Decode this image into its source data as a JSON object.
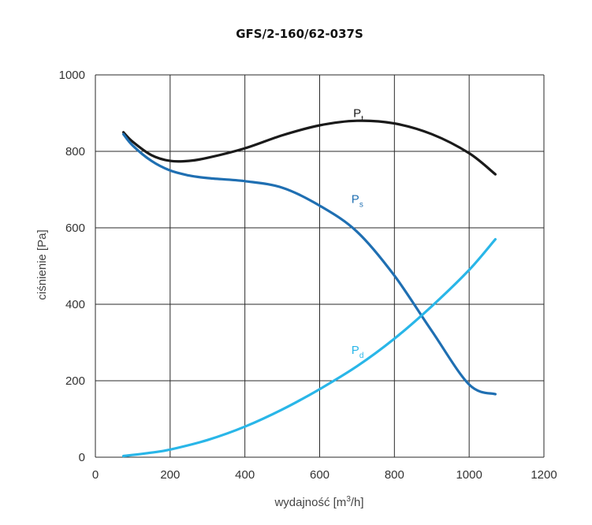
{
  "chart_data": {
    "type": "line",
    "title": "GFS/2-160/62-037S",
    "xlabel_prefix": "wydajność [m",
    "xlabel_sup": "3",
    "xlabel_suffix": "/h]",
    "ylabel": "ciśnienie [Pa]",
    "xlim": [
      0,
      1200
    ],
    "ylim": [
      0,
      1000
    ],
    "xticks": [
      0,
      200,
      400,
      600,
      800,
      1000,
      1200
    ],
    "yticks": [
      0,
      200,
      400,
      600,
      800,
      1000
    ],
    "grid": true,
    "series": [
      {
        "name": "P",
        "sub": "t",
        "color": "#1a1a1a",
        "label_at": [
          690,
          890
        ],
        "x": [
          75,
          100,
          150,
          200,
          250,
          300,
          400,
          500,
          600,
          700,
          800,
          900,
          1000,
          1070
        ],
        "y": [
          850,
          825,
          790,
          775,
          775,
          783,
          808,
          842,
          868,
          880,
          873,
          845,
          795,
          740
        ]
      },
      {
        "name": "P",
        "sub": "s",
        "color": "#1f6fb2",
        "label_at": [
          685,
          665
        ],
        "x": [
          75,
          100,
          150,
          200,
          250,
          300,
          400,
          500,
          600,
          700,
          800,
          900,
          1000,
          1070
        ],
        "y": [
          845,
          815,
          775,
          750,
          737,
          730,
          722,
          705,
          658,
          590,
          475,
          330,
          190,
          165
        ]
      },
      {
        "name": "P",
        "sub": "d",
        "color": "#29b6e8",
        "label_at": [
          685,
          270
        ],
        "x": [
          75,
          150,
          200,
          300,
          400,
          500,
          600,
          700,
          800,
          900,
          1000,
          1070
        ],
        "y": [
          3,
          12,
          20,
          45,
          80,
          125,
          178,
          238,
          310,
          395,
          490,
          570
        ]
      }
    ]
  }
}
